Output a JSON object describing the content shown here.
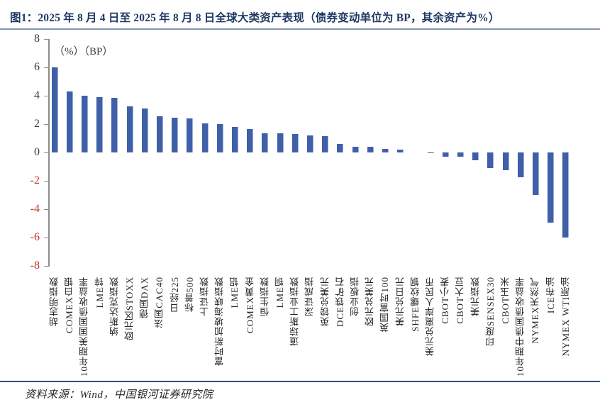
{
  "title": "图1：2025 年 8 月 4 日至 2025 年 8 月 8 日全球大类资产表现（债券变动单位为 BP，其余资产为%）",
  "units_note": "（%）（BP）",
  "source": "资料来源：Wind，中国银河证券研究院",
  "colors": {
    "title": "#1f3864",
    "title_rule": "#8496b0",
    "bar": "#3f5fa8",
    "positive_tick_label": "#3b3b3b",
    "negative_tick_label": "#c3342c",
    "footer_rule": "#2e4d7b"
  },
  "chart_data": {
    "type": "bar",
    "title": "2025年8月4日至2025年8月8日全球大类资产表现",
    "unit_annotation": "（%）（BP）",
    "categories": [
      "胡志明指数",
      "COMEX白银",
      "10年期美国国债收益率",
      "LME锌",
      "纳斯达克指数",
      "欧元区STOXX",
      "德国DAX",
      "法国CAC40",
      "日经225",
      "标普500",
      "上证指数",
      "富时新加坡海峡指数",
      "LME铝",
      "COMEX黄金",
      "恒生指数",
      "LME铜",
      "道琼斯工业指数",
      "深证成指",
      "英镑兑美元",
      "DCE铁矿石",
      "创业板指",
      "欧元兑美元",
      "英国富时100",
      "美元兑日元",
      "SHFE螺纹钢",
      "美元兑离岸人民币",
      "CBOT小麦",
      "CBOT大豆",
      "美元指数",
      "印度SENSEX30",
      "CBOT玉米",
      "10年期中债国债收益率",
      "NYMEX天然气",
      "ICE布油",
      "NYMEX WTI原油"
    ],
    "values": [
      6.0,
      4.3,
      4.0,
      3.9,
      3.85,
      3.25,
      3.1,
      2.55,
      2.45,
      2.4,
      2.05,
      2.0,
      1.8,
      1.65,
      1.35,
      1.35,
      1.3,
      1.2,
      1.15,
      0.6,
      0.4,
      0.4,
      0.25,
      0.2,
      0.0,
      -0.05,
      -0.3,
      -0.3,
      -0.55,
      -1.1,
      -1.25,
      -1.75,
      -3.0,
      -4.95,
      -6.0
    ],
    "xlabel": "",
    "ylabel": "",
    "ylim": [
      -8,
      8
    ],
    "yticks": [
      8,
      6,
      4,
      2,
      0,
      -2,
      -4,
      -6,
      -8
    ],
    "grid": false,
    "legend": false,
    "bar_color": "#3f5fa8",
    "negative_tick_color": "red",
    "label_rotation": "vertical-bottom-up"
  }
}
